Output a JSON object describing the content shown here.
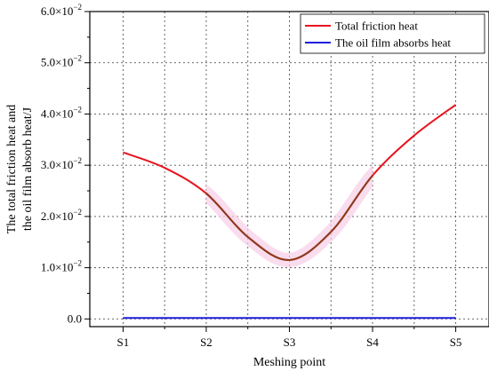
{
  "chart_data": {
    "type": "line",
    "categories": [
      "S1",
      "S2",
      "S3",
      "S4",
      "S5"
    ],
    "x": [
      1,
      1.5,
      2,
      2.5,
      3,
      3.5,
      4,
      4.5,
      5
    ],
    "series": [
      {
        "name": "Total friction heat",
        "color": "#e8141e",
        "values": [
          0.0325,
          0.0295,
          0.0245,
          0.016,
          0.0115,
          0.017,
          0.028,
          0.0358,
          0.0418
        ]
      },
      {
        "name": "The oil film absorbs heat",
        "color": "#1e1edc",
        "values": [
          0.0002,
          0.0002,
          0.0002,
          0.0002,
          0.0002,
          0.0002,
          0.0002,
          0.0002,
          0.0002
        ]
      }
    ],
    "xlabel": "Meshing point",
    "ylabel": [
      "The total friction heat and",
      "the oil film absorb heat/J"
    ],
    "ylim": [
      -0.0015,
      0.06
    ],
    "yticks": [
      0,
      0.01,
      0.02,
      0.03,
      0.04,
      0.05,
      0.06
    ],
    "ytick_labels": [
      {
        "m": "0.0",
        "e": ""
      },
      {
        "m": "1.0×10",
        "e": "−2"
      },
      {
        "m": "2.0×10",
        "e": "−2"
      },
      {
        "m": "3.0×10",
        "e": "−2"
      },
      {
        "m": "4.0×10",
        "e": "−2"
      },
      {
        "m": "5.0×10",
        "e": "−2"
      },
      {
        "m": "6.0×10",
        "e": "−2"
      }
    ],
    "grid": true,
    "legend_position": "top-right",
    "overlap_color": "#8a3a1c"
  }
}
